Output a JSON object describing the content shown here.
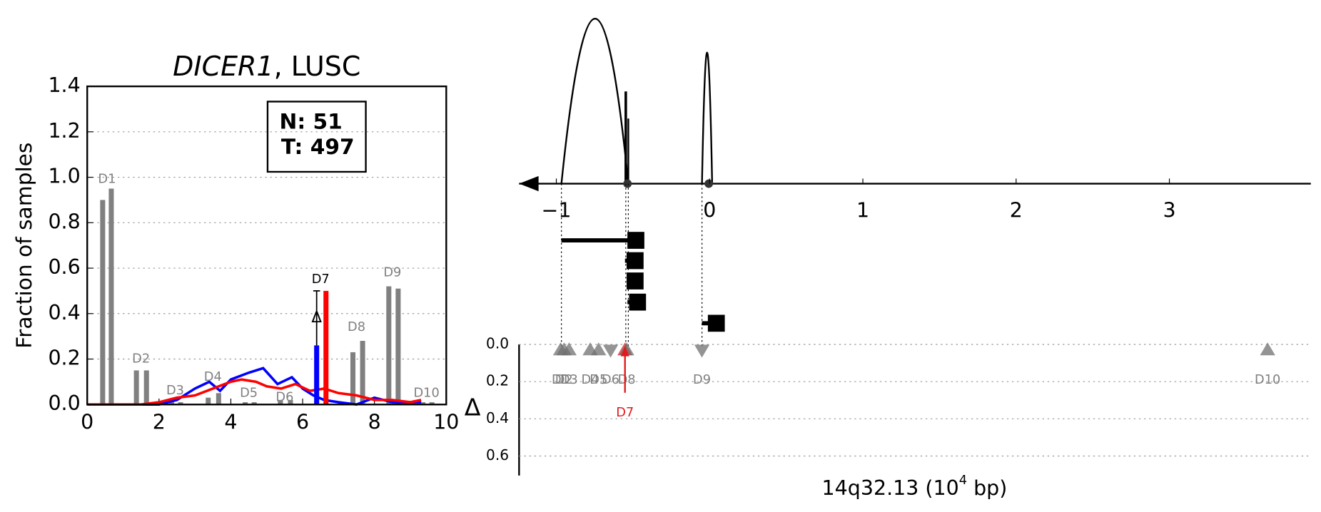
{
  "chart_data": [
    {
      "type": "bar",
      "title_gene": "DICER1",
      "title_rest": ", LUSC",
      "ylabel": "Fraction of samples",
      "xlim": [
        0,
        10
      ],
      "ylim": [
        0,
        1.4
      ],
      "xticks": [
        0,
        2,
        4,
        6,
        8,
        10
      ],
      "yticks": [
        {
          "value": 0,
          "label": "0.0"
        },
        {
          "value": 0.2,
          "label": "0.2"
        },
        {
          "value": 0.4,
          "label": "0.4"
        },
        {
          "value": 0.6,
          "label": "0.6"
        },
        {
          "value": 0.8,
          "label": "0.8"
        },
        {
          "value": 1.0,
          "label": "1.0"
        },
        {
          "value": 1.2,
          "label": "1.2"
        },
        {
          "value": 1.4,
          "label": "1.4"
        }
      ],
      "grid": true,
      "legend_text": [
        "N: 51",
        "T: 497"
      ],
      "bars": {
        "color": "#808080",
        "x": [
          0.43,
          0.67,
          1.37,
          1.65,
          2.35,
          2.6,
          3.37,
          3.66,
          4.4,
          4.65,
          5.38,
          5.66,
          7.4,
          7.67,
          8.4,
          8.66,
          9.35,
          9.6
        ],
        "values": [
          0.9,
          0.95,
          0.15,
          0.15,
          0.01,
          0.01,
          0.03,
          0.05,
          0.01,
          0.01,
          0.02,
          0.02,
          0.23,
          0.28,
          0.52,
          0.51,
          0.01,
          0.01
        ]
      },
      "highlight_bars": {
        "x": [
          6.39,
          6.65
        ],
        "values": [
          0.26,
          0.5
        ],
        "colors": [
          "#0000ff",
          "#ff0000"
        ]
      },
      "error_bar": {
        "x": 6.39,
        "value": 0.26,
        "error": 0.24
      },
      "delta_marker": {
        "label": "Δ",
        "x": 6.39,
        "y": 0.38
      },
      "lines": [
        {
          "color": "#0000ff",
          "x": [
            0,
            1,
            2,
            2.5,
            3,
            3.4,
            3.7,
            4,
            4.5,
            4.9,
            5.3,
            5.7,
            6,
            6.3,
            6.6,
            7,
            7.5,
            8,
            8.5,
            9,
            9.3
          ],
          "values": [
            0,
            0,
            0,
            0.02,
            0.07,
            0.1,
            0.06,
            0.11,
            0.14,
            0.16,
            0.09,
            0.12,
            0.07,
            0.04,
            0.02,
            0.01,
            0,
            0.03,
            0.01,
            0.01,
            0.01
          ]
        },
        {
          "color": "#ff0000",
          "x": [
            0,
            1.5,
            2,
            2.5,
            3,
            3.5,
            4,
            4.3,
            4.7,
            5,
            5.4,
            5.8,
            6.2,
            6.6,
            7,
            7.5,
            8,
            8.5,
            9,
            9.3
          ],
          "values": [
            0,
            0,
            0.01,
            0.03,
            0.04,
            0.07,
            0.1,
            0.11,
            0.1,
            0.08,
            0.07,
            0.09,
            0.06,
            0.07,
            0.05,
            0.04,
            0.02,
            0.02,
            0.01,
            0.02
          ]
        }
      ],
      "annotations": [
        {
          "text": "D1",
          "x": 0.55,
          "y": 0.99,
          "color": "#808080"
        },
        {
          "text": "D2",
          "x": 1.5,
          "y": 0.2,
          "color": "#808080"
        },
        {
          "text": "D3",
          "x": 2.45,
          "y": 0.06,
          "color": "#808080"
        },
        {
          "text": "D4",
          "x": 3.5,
          "y": 0.12,
          "color": "#808080"
        },
        {
          "text": "D5",
          "x": 4.5,
          "y": 0.05,
          "color": "#808080"
        },
        {
          "text": "D6",
          "x": 5.5,
          "y": 0.03,
          "color": "#808080"
        },
        {
          "text": "D7",
          "x": 6.5,
          "y": 0.55,
          "color": "#000000"
        },
        {
          "text": "D8",
          "x": 7.5,
          "y": 0.34,
          "color": "#808080"
        },
        {
          "text": "D9",
          "x": 8.5,
          "y": 0.58,
          "color": "#808080"
        },
        {
          "text": "D10",
          "x": 9.45,
          "y": 0.05,
          "color": "#808080"
        }
      ]
    },
    {
      "type": "track",
      "xlim": [
        -1.243,
        3.923
      ],
      "xticks": [
        {
          "value": -1,
          "label": "−1"
        },
        0,
        1,
        2,
        3
      ],
      "estimates": {
        "x": [
          -0.481,
          -0.486,
          -0.486,
          -0.47,
          0.044
        ],
        "low": [
          -0.967,
          -0.552,
          -0.541,
          -0.536,
          -0.05
        ]
      }
    },
    {
      "type": "scatter",
      "xlim": [
        -1.243,
        3.923
      ],
      "ylim": [
        0,
        0.705
      ],
      "inverted": true,
      "yticks": [
        {
          "value": 0,
          "label": "0.0"
        },
        {
          "value": 0.2,
          "label": "0.2"
        },
        {
          "value": 0.4,
          "label": "0.4"
        },
        {
          "value": 0.6,
          "label": "0.6"
        }
      ],
      "grid": true,
      "ylabel": "Δ",
      "xlabel": {
        "main": "14q32.13 (10",
        "sup": "4",
        "end": " bp)"
      },
      "points": {
        "labels": [
          "D1",
          "D2",
          "D3",
          "D4",
          "D5",
          "D6",
          "D7",
          "D8",
          "D9",
          "D10"
        ],
        "x": [
          -0.972,
          -0.95,
          -0.917,
          -0.779,
          -0.724,
          -0.646,
          -0.552,
          -0.541,
          -0.05,
          3.641
        ],
        "y": [
          0.03,
          0.03,
          0.03,
          0.03,
          0.03,
          0.03,
          0.03,
          0.03,
          0.03,
          0.03
        ],
        "direction": [
          "up",
          "up",
          "up",
          "up",
          "up",
          "down",
          "up",
          "up",
          "down",
          "up"
        ],
        "colors": [
          "#707070",
          "#707070",
          "#707070",
          "#707070",
          "#707070",
          "#707070",
          "#d62728",
          "#707070",
          "#707070",
          "#707070"
        ]
      },
      "highlight": {
        "label": "D7",
        "x": -0.552,
        "arrow_y": 0.26,
        "color": "#e31a1c"
      }
    }
  ]
}
